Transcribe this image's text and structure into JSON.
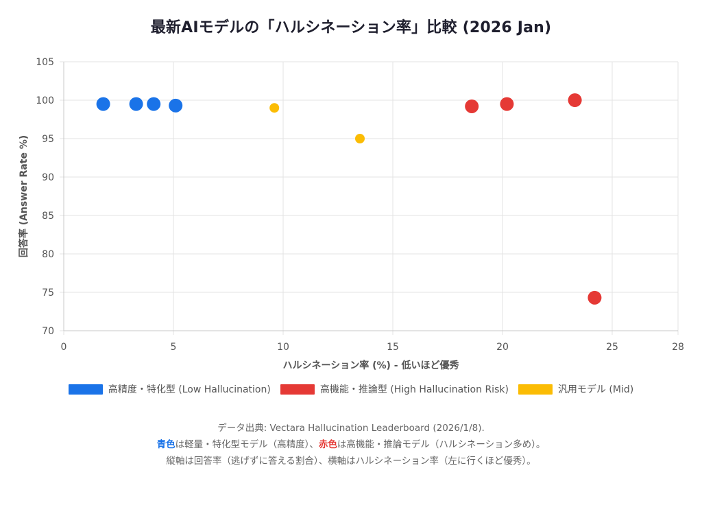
{
  "title": "最新AIモデルの「ハルシネーション率」比較 (2026 Jan)",
  "colors": {
    "blue": "#1a73e8",
    "red": "#e53935",
    "yellow": "#fbbc04"
  },
  "chart_data": {
    "type": "scatter",
    "title": "最新AIモデルの「ハルシネーション率」比較 (2026 Jan)",
    "xlabel": "ハルシネーション率 (%) - 低いほど優秀",
    "ylabel": "回答率 (Answer Rate %)",
    "xlim": [
      0,
      28
    ],
    "ylim": [
      70,
      105
    ],
    "xticks": [
      0,
      5,
      10,
      15,
      20,
      25,
      28
    ],
    "yticks": [
      70,
      75,
      80,
      85,
      90,
      95,
      100,
      105
    ],
    "series": [
      {
        "name": "高精度・特化型 (Low Hallucination)",
        "color": "#1a73e8",
        "point_size": "large",
        "points": [
          [
            1.8,
            99.5
          ],
          [
            3.3,
            99.5
          ],
          [
            4.1,
            99.5
          ],
          [
            5.1,
            99.3
          ]
        ]
      },
      {
        "name": "高機能・推論型 (High Hallucination Risk)",
        "color": "#e53935",
        "point_size": "large",
        "points": [
          [
            18.6,
            99.2
          ],
          [
            20.2,
            99.5
          ],
          [
            23.3,
            100.0
          ],
          [
            24.2,
            74.3
          ]
        ]
      },
      {
        "name": "汎用モデル (Mid)",
        "color": "#fbbc04",
        "point_size": "small",
        "points": [
          [
            9.6,
            99.0
          ],
          [
            13.5,
            95.0
          ]
        ]
      }
    ]
  },
  "notes": {
    "line1": "データ出典: Vectara Hallucination Leaderboard (2026/1/8).",
    "blue_word": "青色",
    "line2_mid": "は軽量・特化型モデル（高精度）、",
    "red_word": "赤色",
    "line2_end": "は高機能・推論モデル（ハルシネーション多め）。",
    "line3": "縦軸は回答率（逃げずに答える割合）、横軸はハルシネーション率（左に行くほど優秀）。"
  }
}
